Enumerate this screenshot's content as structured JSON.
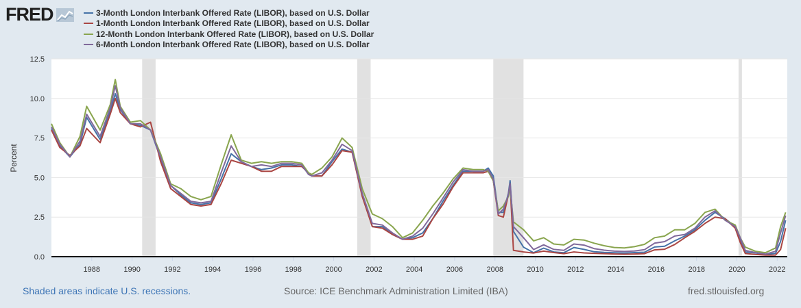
{
  "logo": {
    "text": "FRED",
    "icon": "fred-chart-icon"
  },
  "footer": {
    "recessions_link": "Shaded areas indicate U.S. recessions.",
    "source": "Source: ICE Benchmark Administration Limited (IBA)",
    "site": "fred.stlouisfed.org"
  },
  "chart_data": {
    "type": "line",
    "ylabel": "Percent",
    "ylim": [
      0,
      12.5
    ],
    "yticks": [
      "0.0",
      "2.5",
      "5.0",
      "7.5",
      "10.0",
      "12.5"
    ],
    "xlim": [
      "1986-01-01",
      "2022-07-01"
    ],
    "xticks": [
      "1988",
      "1990",
      "1992",
      "1994",
      "1996",
      "1998",
      "2000",
      "2002",
      "2004",
      "2006",
      "2008",
      "2010",
      "2012",
      "2014",
      "2016",
      "2018",
      "2020",
      "2022"
    ],
    "grid": true,
    "legend_position": "top-left",
    "recessions": [
      {
        "start": "1990-07-01",
        "end": "1991-03-01"
      },
      {
        "start": "2001-03-01",
        "end": "2001-11-01"
      },
      {
        "start": "2007-12-01",
        "end": "2009-06-01"
      },
      {
        "start": "2020-02-01",
        "end": "2020-04-01"
      }
    ],
    "series": [
      {
        "name": "3-Month London Interbank Offered Rate (LIBOR), based on U.S. Dollar",
        "color": "#4572a7",
        "x": [
          "1986-01",
          "1986-06",
          "1986-12",
          "1987-06",
          "1987-10",
          "1988-06",
          "1988-12",
          "1989-03",
          "1989-06",
          "1989-12",
          "1990-06",
          "1990-12",
          "1991-06",
          "1991-12",
          "1992-06",
          "1992-12",
          "1993-06",
          "1993-12",
          "1994-06",
          "1994-12",
          "1995-06",
          "1995-12",
          "1996-06",
          "1996-12",
          "1997-06",
          "1997-12",
          "1998-06",
          "1998-10",
          "1998-12",
          "1999-06",
          "1999-12",
          "2000-06",
          "2000-12",
          "2001-06",
          "2001-12",
          "2002-06",
          "2002-12",
          "2003-06",
          "2003-12",
          "2004-06",
          "2004-12",
          "2005-06",
          "2005-12",
          "2006-06",
          "2006-12",
          "2007-06",
          "2007-09",
          "2007-12",
          "2008-03",
          "2008-06",
          "2008-09",
          "2008-10",
          "2008-12",
          "2009-06",
          "2009-12",
          "2010-06",
          "2010-12",
          "2011-06",
          "2011-12",
          "2012-06",
          "2012-12",
          "2013-06",
          "2013-12",
          "2014-06",
          "2014-12",
          "2015-06",
          "2015-12",
          "2016-06",
          "2016-12",
          "2017-06",
          "2017-12",
          "2018-06",
          "2018-12",
          "2019-06",
          "2019-12",
          "2020-03",
          "2020-06",
          "2020-12",
          "2021-06",
          "2021-12",
          "2022-03",
          "2022-06"
        ],
        "values": [
          8.1,
          7.0,
          6.3,
          7.1,
          8.8,
          7.4,
          9.2,
          10.3,
          9.3,
          8.4,
          8.3,
          8.0,
          6.2,
          4.5,
          3.9,
          3.4,
          3.3,
          3.4,
          4.9,
          6.5,
          6.0,
          5.7,
          5.5,
          5.6,
          5.8,
          5.8,
          5.7,
          5.3,
          5.1,
          5.1,
          6.0,
          6.8,
          6.6,
          3.9,
          1.9,
          1.9,
          1.4,
          1.1,
          1.2,
          1.5,
          2.4,
          3.5,
          4.5,
          5.4,
          5.4,
          5.4,
          5.6,
          5.1,
          2.8,
          2.8,
          4.0,
          4.8,
          1.6,
          0.6,
          0.25,
          0.54,
          0.3,
          0.25,
          0.58,
          0.46,
          0.31,
          0.27,
          0.25,
          0.23,
          0.26,
          0.28,
          0.61,
          0.66,
          1.0,
          1.3,
          1.7,
          2.3,
          2.8,
          2.4,
          1.9,
          1.1,
          0.3,
          0.24,
          0.13,
          0.21,
          0.96,
          2.3
        ]
      },
      {
        "name": "1-Month London Interbank Offered Rate (LIBOR), based on U.S. Dollar",
        "color": "#aa4643",
        "x": [
          "1986-01",
          "1986-06",
          "1986-12",
          "1987-06",
          "1987-10",
          "1988-06",
          "1988-12",
          "1989-03",
          "1989-06",
          "1989-12",
          "1990-06",
          "1990-12",
          "1991-06",
          "1991-12",
          "1992-06",
          "1992-12",
          "1993-06",
          "1993-12",
          "1994-06",
          "1994-12",
          "1995-06",
          "1995-12",
          "1996-06",
          "1996-12",
          "1997-06",
          "1997-12",
          "1998-06",
          "1998-10",
          "1998-12",
          "1999-06",
          "1999-12",
          "2000-06",
          "2000-12",
          "2001-06",
          "2001-12",
          "2002-06",
          "2002-12",
          "2003-06",
          "2003-12",
          "2004-06",
          "2004-12",
          "2005-06",
          "2005-12",
          "2006-06",
          "2006-12",
          "2007-06",
          "2007-09",
          "2007-12",
          "2008-03",
          "2008-06",
          "2008-09",
          "2008-10",
          "2008-12",
          "2009-06",
          "2009-12",
          "2010-06",
          "2010-12",
          "2011-06",
          "2011-12",
          "2012-06",
          "2012-12",
          "2013-06",
          "2013-12",
          "2014-06",
          "2014-12",
          "2015-06",
          "2015-12",
          "2016-06",
          "2016-12",
          "2017-06",
          "2017-12",
          "2018-06",
          "2018-12",
          "2019-06",
          "2019-12",
          "2020-03",
          "2020-06",
          "2020-12",
          "2021-06",
          "2021-12",
          "2022-03",
          "2022-06"
        ],
        "values": [
          8.0,
          6.9,
          6.4,
          7.0,
          8.1,
          7.2,
          9.0,
          10.0,
          9.1,
          8.4,
          8.2,
          8.5,
          6.0,
          4.3,
          3.8,
          3.3,
          3.2,
          3.3,
          4.6,
          6.1,
          5.9,
          5.7,
          5.4,
          5.4,
          5.7,
          5.7,
          5.7,
          5.3,
          5.1,
          5.1,
          5.8,
          6.7,
          6.6,
          3.8,
          1.9,
          1.8,
          1.4,
          1.1,
          1.1,
          1.3,
          2.4,
          3.3,
          4.4,
          5.3,
          5.3,
          5.3,
          5.4,
          4.8,
          2.6,
          2.5,
          3.9,
          4.6,
          0.4,
          0.3,
          0.23,
          0.35,
          0.26,
          0.19,
          0.3,
          0.24,
          0.21,
          0.19,
          0.17,
          0.15,
          0.17,
          0.19,
          0.43,
          0.47,
          0.77,
          1.2,
          1.6,
          2.1,
          2.5,
          2.4,
          1.8,
          0.9,
          0.2,
          0.14,
          0.1,
          0.1,
          0.45,
          1.8
        ]
      },
      {
        "name": "12-Month London Interbank Offered Rate (LIBOR), based on U.S. Dollar",
        "color": "#89a54e",
        "x": [
          "1986-01",
          "1986-06",
          "1986-12",
          "1987-06",
          "1987-10",
          "1988-06",
          "1988-12",
          "1989-03",
          "1989-06",
          "1989-12",
          "1990-06",
          "1990-12",
          "1991-06",
          "1991-12",
          "1992-06",
          "1992-12",
          "1993-06",
          "1993-12",
          "1994-06",
          "1994-12",
          "1995-06",
          "1995-12",
          "1996-06",
          "1996-12",
          "1997-06",
          "1997-12",
          "1998-06",
          "1998-10",
          "1998-12",
          "1999-06",
          "1999-12",
          "2000-06",
          "2000-12",
          "2001-06",
          "2001-12",
          "2002-06",
          "2002-12",
          "2003-06",
          "2003-12",
          "2004-06",
          "2004-12",
          "2005-06",
          "2005-12",
          "2006-06",
          "2006-12",
          "2007-06",
          "2007-09",
          "2007-12",
          "2008-03",
          "2008-06",
          "2008-09",
          "2008-10",
          "2008-12",
          "2009-06",
          "2009-12",
          "2010-06",
          "2010-12",
          "2011-06",
          "2011-12",
          "2012-06",
          "2012-12",
          "2013-06",
          "2013-12",
          "2014-06",
          "2014-12",
          "2015-06",
          "2015-12",
          "2016-06",
          "2016-12",
          "2017-06",
          "2017-12",
          "2018-06",
          "2018-12",
          "2019-06",
          "2019-12",
          "2020-03",
          "2020-06",
          "2020-12",
          "2021-06",
          "2021-12",
          "2022-03",
          "2022-06"
        ],
        "values": [
          8.4,
          7.2,
          6.3,
          7.6,
          9.5,
          8.0,
          9.6,
          11.2,
          9.5,
          8.5,
          8.6,
          8.0,
          6.5,
          4.6,
          4.3,
          3.8,
          3.6,
          3.8,
          5.8,
          7.7,
          6.1,
          5.9,
          6.0,
          5.9,
          6.0,
          6.0,
          5.9,
          5.3,
          5.2,
          5.6,
          6.3,
          7.5,
          6.9,
          4.3,
          2.7,
          2.4,
          1.9,
          1.2,
          1.5,
          2.3,
          3.2,
          4.0,
          4.9,
          5.6,
          5.5,
          5.5,
          5.4,
          4.8,
          2.9,
          3.2,
          3.8,
          4.3,
          2.2,
          1.7,
          1.0,
          1.2,
          0.8,
          0.74,
          1.1,
          1.05,
          0.85,
          0.69,
          0.58,
          0.55,
          0.63,
          0.78,
          1.2,
          1.3,
          1.7,
          1.7,
          2.1,
          2.8,
          3.0,
          2.3,
          2.0,
          1.2,
          0.6,
          0.34,
          0.25,
          0.55,
          1.9,
          2.8
        ]
      },
      {
        "name": "6-Month London Interbank Offered Rate (LIBOR), based on U.S. Dollar",
        "color": "#80699b",
        "x": [
          "1986-01",
          "1986-06",
          "1986-12",
          "1987-06",
          "1987-10",
          "1988-06",
          "1988-12",
          "1989-03",
          "1989-06",
          "1989-12",
          "1990-06",
          "1990-12",
          "1991-06",
          "1991-12",
          "1992-06",
          "1992-12",
          "1993-06",
          "1993-12",
          "1994-06",
          "1994-12",
          "1995-06",
          "1995-12",
          "1996-06",
          "1996-12",
          "1997-06",
          "1997-12",
          "1998-06",
          "1998-10",
          "1998-12",
          "1999-06",
          "1999-12",
          "2000-06",
          "2000-12",
          "2001-06",
          "2001-12",
          "2002-06",
          "2002-12",
          "2003-06",
          "2003-12",
          "2004-06",
          "2004-12",
          "2005-06",
          "2005-12",
          "2006-06",
          "2006-12",
          "2007-06",
          "2007-09",
          "2007-12",
          "2008-03",
          "2008-06",
          "2008-09",
          "2008-10",
          "2008-12",
          "2009-06",
          "2009-12",
          "2010-06",
          "2010-12",
          "2011-06",
          "2011-12",
          "2012-06",
          "2012-12",
          "2013-06",
          "2013-12",
          "2014-06",
          "2014-12",
          "2015-06",
          "2015-12",
          "2016-06",
          "2016-12",
          "2017-06",
          "2017-12",
          "2018-06",
          "2018-12",
          "2019-06",
          "2019-12",
          "2020-03",
          "2020-06",
          "2020-12",
          "2021-06",
          "2021-12",
          "2022-03",
          "2022-06"
        ],
        "values": [
          8.2,
          7.1,
          6.3,
          7.3,
          9.0,
          7.6,
          9.4,
          10.8,
          9.4,
          8.4,
          8.4,
          8.0,
          6.3,
          4.5,
          4.0,
          3.5,
          3.4,
          3.5,
          5.3,
          7.0,
          6.0,
          5.7,
          5.8,
          5.7,
          5.9,
          5.9,
          5.8,
          5.2,
          5.1,
          5.3,
          6.1,
          7.1,
          6.7,
          4.0,
          2.1,
          2.0,
          1.5,
          1.1,
          1.3,
          1.8,
          2.7,
          3.7,
          4.7,
          5.5,
          5.4,
          5.4,
          5.5,
          4.9,
          2.7,
          3.0,
          3.9,
          4.6,
          1.9,
          1.2,
          0.45,
          0.75,
          0.46,
          0.4,
          0.8,
          0.73,
          0.51,
          0.41,
          0.35,
          0.33,
          0.36,
          0.44,
          0.85,
          0.95,
          1.3,
          1.4,
          1.8,
          2.5,
          2.9,
          2.3,
          1.9,
          1.2,
          0.4,
          0.26,
          0.16,
          0.34,
          1.5,
          2.6
        ]
      }
    ]
  }
}
